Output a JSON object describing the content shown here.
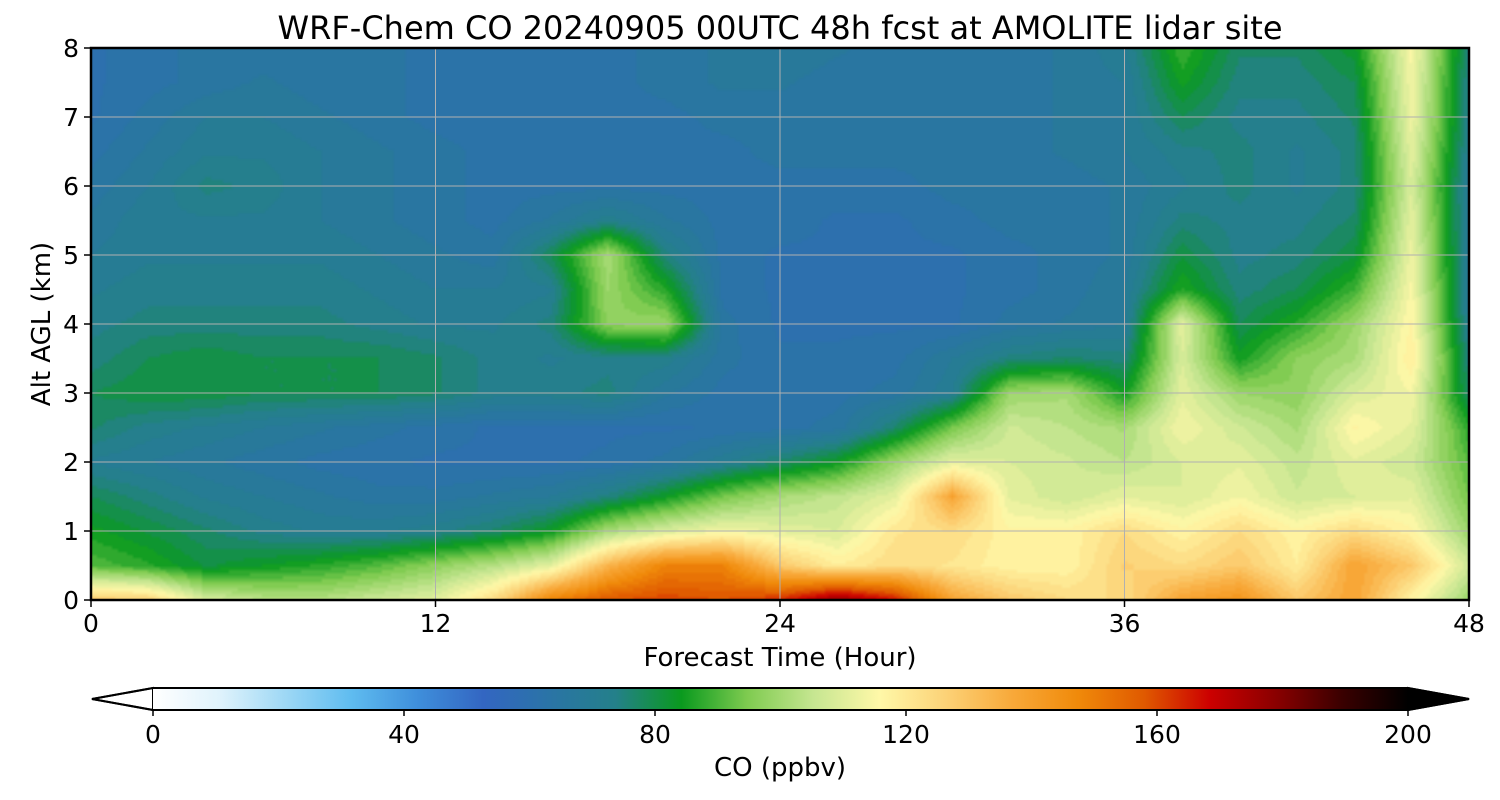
{
  "chart_data": {
    "type": "heatmap",
    "subtype": "filled-contour",
    "title": "WRF-Chem CO  20240905 00UTC 48h fcst at AMOLITE lidar site",
    "xlabel": "Forecast Time (Hour)",
    "ylabel": "Alt AGL (km)",
    "xlim": [
      0,
      48
    ],
    "ylim": [
      0,
      8
    ],
    "xticks": [
      "0",
      "12",
      "24",
      "36",
      "48"
    ],
    "yticks": [
      "0",
      "1",
      "2",
      "3",
      "4",
      "5",
      "6",
      "7",
      "8"
    ],
    "grid": true,
    "x_hours": [
      0,
      2,
      4,
      6,
      8,
      10,
      12,
      14,
      16,
      18,
      20,
      22,
      24,
      26,
      28,
      30,
      32,
      34,
      36,
      38,
      40,
      42,
      44,
      46,
      48
    ],
    "z_km": [
      0,
      0.5,
      1,
      1.5,
      2,
      2.5,
      3,
      3.5,
      4,
      4.5,
      5,
      5.5,
      6,
      6.5,
      7,
      7.5,
      8
    ],
    "values_ppbv": [
      [
        130,
        128,
        110,
        105,
        104,
        108,
        112,
        125,
        150,
        160,
        162,
        160,
        165,
        180,
        168,
        140,
        130,
        125,
        125,
        140,
        145,
        130,
        140,
        118,
        100
      ],
      [
        92,
        88,
        82,
        85,
        88,
        92,
        98,
        104,
        112,
        135,
        150,
        150,
        130,
        120,
        125,
        122,
        118,
        118,
        128,
        125,
        130,
        120,
        140,
        130,
        108
      ],
      [
        86,
        82,
        78,
        74,
        72,
        72,
        74,
        78,
        85,
        102,
        110,
        115,
        112,
        110,
        122,
        125,
        118,
        118,
        125,
        118,
        125,
        118,
        125,
        118,
        100
      ],
      [
        80,
        76,
        72,
        70,
        68,
        66,
        66,
        68,
        70,
        76,
        85,
        95,
        102,
        106,
        112,
        140,
        112,
        108,
        112,
        110,
        115,
        108,
        110,
        112,
        95
      ],
      [
        72,
        70,
        68,
        66,
        64,
        63,
        62,
        62,
        62,
        63,
        66,
        72,
        78,
        85,
        100,
        112,
        110,
        108,
        105,
        110,
        112,
        106,
        112,
        108,
        92
      ],
      [
        78,
        74,
        72,
        70,
        68,
        66,
        64,
        62,
        62,
        62,
        62,
        63,
        64,
        66,
        78,
        95,
        108,
        105,
        102,
        115,
        108,
        102,
        118,
        112,
        88
      ],
      [
        80,
        82,
        82,
        80,
        80,
        80,
        78,
        74,
        74,
        76,
        68,
        64,
        63,
        64,
        66,
        72,
        100,
        102,
        86,
        112,
        100,
        98,
        110,
        115,
        78
      ],
      [
        76,
        80,
        82,
        80,
        80,
        80,
        78,
        74,
        72,
        74,
        74,
        66,
        63,
        63,
        64,
        70,
        76,
        78,
        76,
        110,
        86,
        98,
        102,
        120,
        76
      ],
      [
        74,
        76,
        76,
        76,
        76,
        74,
        72,
        72,
        76,
        98,
        100,
        66,
        62,
        62,
        62,
        62,
        66,
        68,
        70,
        112,
        80,
        88,
        100,
        118,
        72
      ],
      [
        72,
        74,
        74,
        74,
        74,
        72,
        70,
        70,
        72,
        100,
        88,
        64,
        62,
        62,
        62,
        62,
        64,
        66,
        70,
        88,
        76,
        80,
        90,
        116,
        70
      ],
      [
        70,
        72,
        72,
        72,
        72,
        70,
        68,
        66,
        80,
        102,
        76,
        64,
        62,
        62,
        62,
        62,
        64,
        66,
        68,
        82,
        74,
        76,
        82,
        114,
        70
      ],
      [
        68,
        72,
        72,
        72,
        70,
        68,
        66,
        64,
        68,
        74,
        68,
        64,
        64,
        62,
        62,
        64,
        66,
        66,
        68,
        76,
        74,
        74,
        78,
        112,
        70
      ],
      [
        66,
        70,
        76,
        74,
        70,
        68,
        66,
        64,
        64,
        64,
        64,
        64,
        64,
        64,
        64,
        66,
        66,
        66,
        68,
        72,
        76,
        72,
        76,
        110,
        70
      ],
      [
        64,
        68,
        72,
        72,
        70,
        68,
        66,
        64,
        64,
        64,
        64,
        64,
        66,
        66,
        66,
        66,
        66,
        68,
        70,
        74,
        76,
        72,
        76,
        112,
        72
      ],
      [
        62,
        66,
        70,
        70,
        68,
        66,
        64,
        64,
        64,
        64,
        64,
        66,
        66,
        66,
        66,
        66,
        66,
        68,
        70,
        80,
        74,
        74,
        78,
        114,
        74
      ],
      [
        62,
        64,
        66,
        68,
        66,
        66,
        64,
        64,
        64,
        64,
        66,
        68,
        68,
        66,
        66,
        66,
        66,
        68,
        70,
        86,
        76,
        76,
        80,
        115,
        74
      ],
      [
        62,
        64,
        66,
        66,
        66,
        66,
        64,
        64,
        64,
        64,
        66,
        68,
        70,
        68,
        66,
        66,
        66,
        68,
        72,
        90,
        78,
        78,
        84,
        116,
        76
      ]
    ],
    "colorbar": {
      "label": "CO  (ppbv)",
      "min": 0,
      "max": 200,
      "ticks": [
        "0",
        "40",
        "80",
        "120",
        "160",
        "200"
      ],
      "extend": "both",
      "colors": [
        "#ffffff",
        "#e0f3fc",
        "#9ed8f5",
        "#5fbcf0",
        "#3f8fdb",
        "#3366c2",
        "#2a74a6",
        "#24808a",
        "#0a9a1e",
        "#7fcb50",
        "#c6e691",
        "#fff8a8",
        "#fcd277",
        "#f8a93a",
        "#f08a0a",
        "#e05a00",
        "#cc0000",
        "#8a0000",
        "#3a0000",
        "#000000"
      ]
    }
  }
}
